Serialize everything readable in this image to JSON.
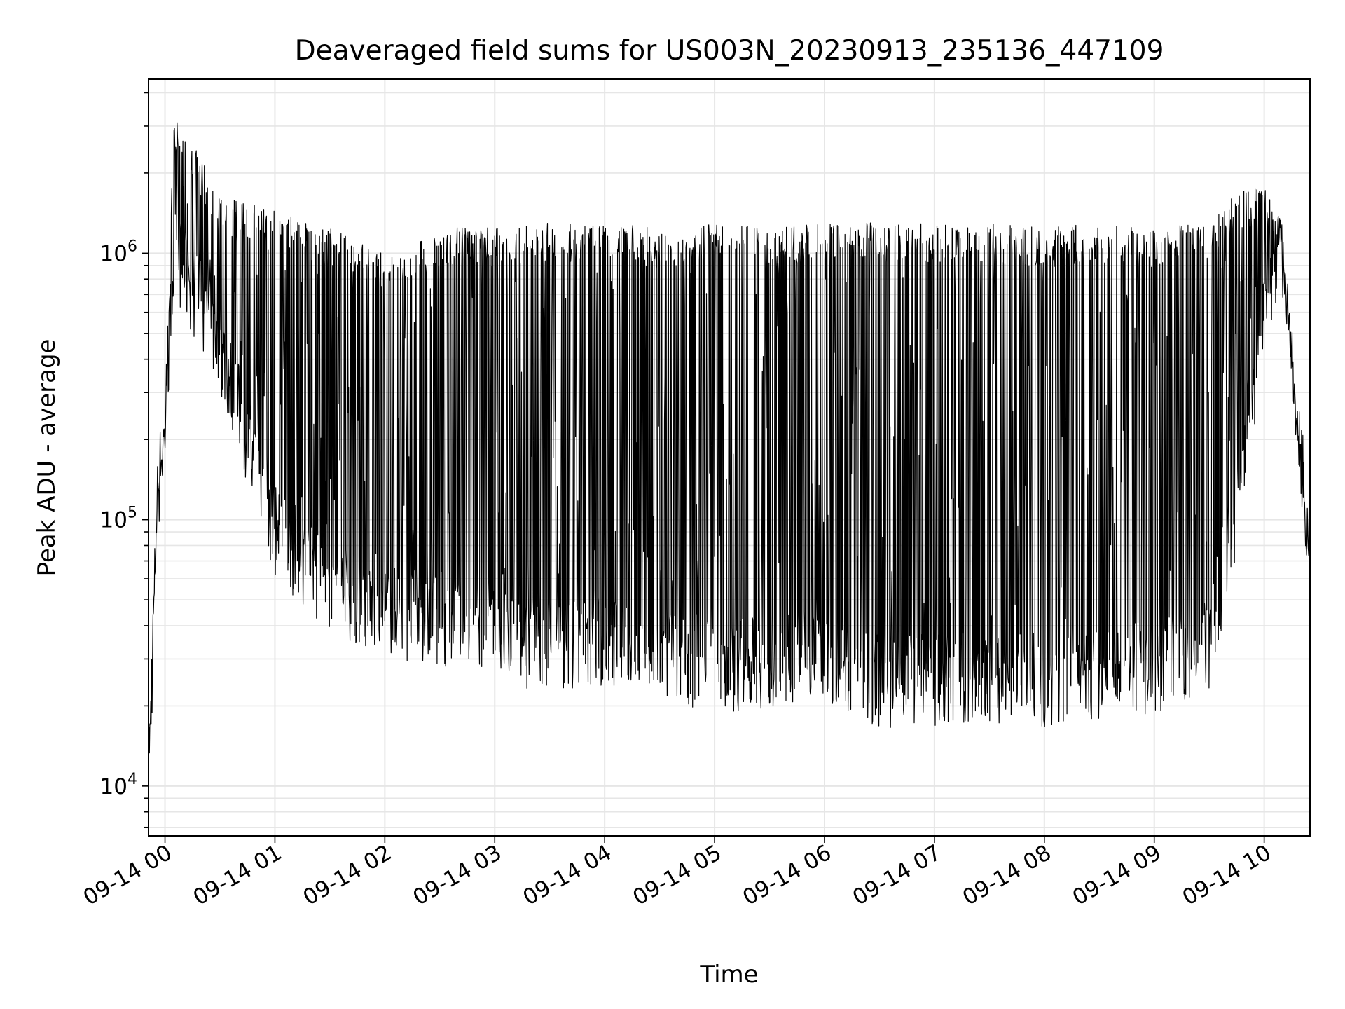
{
  "chart_data": {
    "type": "line",
    "title": "Deaveraged field sums for US003N_20230913_235136_447109",
    "xlabel": "Time",
    "ylabel": "Peak ADU - average",
    "yscale": "log",
    "ylim": [
      6500,
      4500000
    ],
    "xlim": [
      "2023-09-13 23:51",
      "2023-09-14 10:25"
    ],
    "grid": true,
    "legend": "none",
    "colors": {
      "line": "#000000",
      "grid": "#e6e6e6",
      "axes": "#000000",
      "background": "#ffffff"
    },
    "x_tick_labels": [
      "09-14 00",
      "09-14 01",
      "09-14 02",
      "09-14 03",
      "09-14 04",
      "09-14 05",
      "09-14 06",
      "09-14 07",
      "09-14 08",
      "09-14 09",
      "09-14 10"
    ],
    "y_tick_labels": [
      {
        "value": 10000,
        "base": "10",
        "exp": "4"
      },
      {
        "value": 100000,
        "base": "10",
        "exp": "5"
      },
      {
        "value": 1000000,
        "base": "10",
        "exp": "6"
      }
    ],
    "series": [
      {
        "description_points": "baseline (lower envelope) and peak (upper envelope) values at hourly sample times",
        "times": [
          "2023-09-13 23:51",
          "2023-09-13 23:56",
          "2023-09-14 00:00",
          "2023-09-14 00:05",
          "2023-09-14 00:30",
          "2023-09-14 01:00",
          "2023-09-14 01:30",
          "2023-09-14 02:00",
          "2023-09-14 02:30",
          "2023-09-14 03:00",
          "2023-09-14 03:30",
          "2023-09-14 04:00",
          "2023-09-14 04:30",
          "2023-09-14 05:00",
          "2023-09-14 05:30",
          "2023-09-14 06:00",
          "2023-09-14 06:30",
          "2023-09-14 07:00",
          "2023-09-14 07:30",
          "2023-09-14 08:00",
          "2023-09-14 08:30",
          "2023-09-14 09:00",
          "2023-09-14 09:30",
          "2023-09-14 09:45",
          "2023-09-14 10:00",
          "2023-09-14 10:10",
          "2023-09-14 10:20",
          "2023-09-14 10:25"
        ],
        "baseline": [
          9000,
          110000,
          200000,
          900000,
          400000,
          80000,
          50000,
          40000,
          38000,
          32000,
          30000,
          31000,
          28000,
          25000,
          26000,
          28000,
          22000,
          22000,
          23000,
          22000,
          23000,
          25000,
          30000,
          100000,
          550000,
          900000,
          160000,
          70000
        ],
        "peaks": [
          16000,
          150000,
          250000,
          3500000,
          1650000,
          1450000,
          1250000,
          1000000,
          1250000,
          1250000,
          1300000,
          1300000,
          1250000,
          1300000,
          1250000,
          1300000,
          1300000,
          1300000,
          1300000,
          1250000,
          1300000,
          1250000,
          1300000,
          1700000,
          1850000,
          1300000,
          180000,
          70000
        ]
      }
    ]
  }
}
